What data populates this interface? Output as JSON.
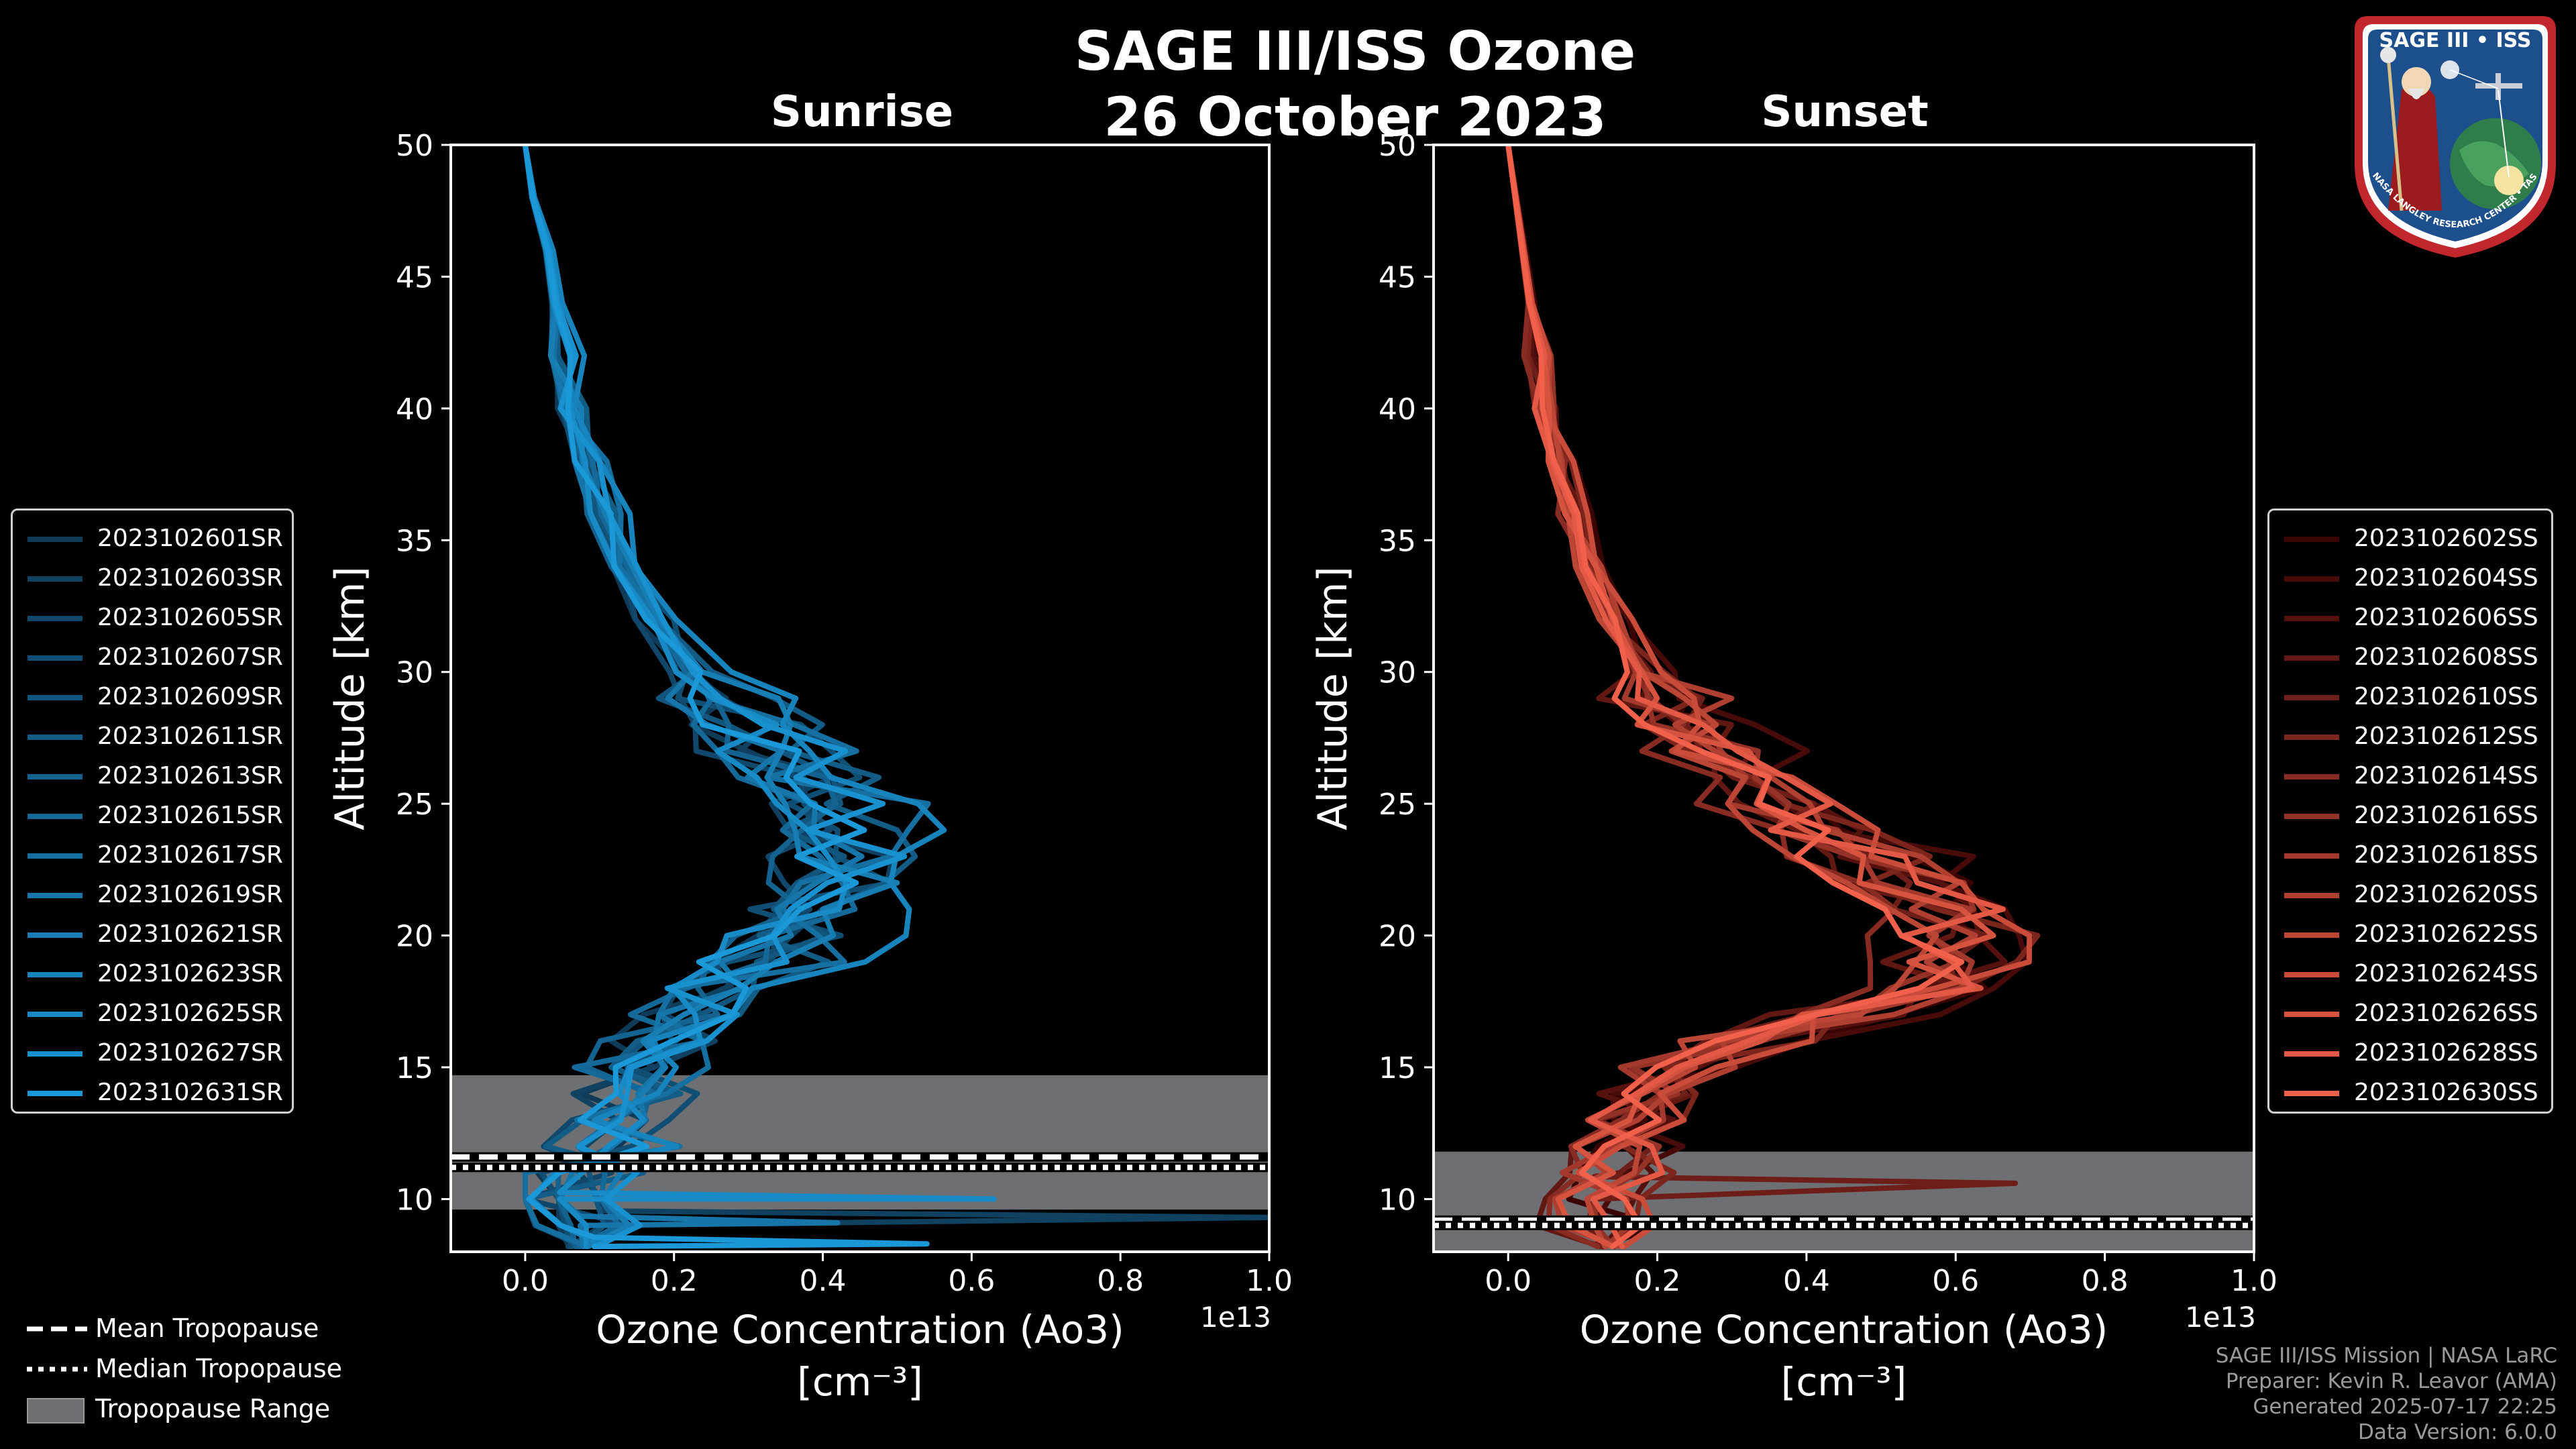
{
  "title": {
    "line1": "SAGE III/ISS Ozone",
    "line2": "26 October 2023"
  },
  "logo": {
    "text": "SAGE III • ISS",
    "ring_text": "BALL • NASA LANGLEY RESEARCH CENTER • TAS-I • ESA"
  },
  "legend_tropopause": [
    {
      "label": "Mean Tropopause",
      "style": "dashed"
    },
    {
      "label": "Median Tropopause",
      "style": "dotted"
    },
    {
      "label": "Tropopause Range",
      "style": "patch"
    }
  ],
  "credits": [
    "SAGE III/ISS Mission | NASA LaRC",
    "Preparer: Kevin R. Leavor (AMA)",
    "Generated 2025-07-17 22:25",
    "Data Version: 6.0.0"
  ],
  "colors": {
    "sunrise_light": "#1a98d8",
    "sunrise_dark": "#0f3a58",
    "sunset_light": "#f0604a",
    "sunset_dark": "#3a0404",
    "trop_fill": "#6e6f72",
    "frame": "#ffffff"
  },
  "chart_data": [
    {
      "type": "line",
      "title": "Sunrise",
      "xlabel": "Ozone Concentration (Ao3)",
      "xlabel_units": "[cm⁻³]",
      "ylabel": "Altitude [km]",
      "x_offset_label": "1e13",
      "xlim": [
        -0.1,
        1.0
      ],
      "ylim": [
        8,
        50
      ],
      "xticks": [
        0.0,
        0.2,
        0.4,
        0.6,
        0.8,
        1.0
      ],
      "xtick_labels": [
        "0.0",
        "0.2",
        "0.4",
        "0.6",
        "0.8",
        "1.0"
      ],
      "yticks": [
        10,
        15,
        20,
        25,
        30,
        35,
        40,
        45,
        50
      ],
      "ytick_labels": [
        "10",
        "15",
        "20",
        "25",
        "30",
        "35",
        "40",
        "45",
        "50"
      ],
      "tropopause": {
        "mean": 11.6,
        "median": 11.2,
        "range": [
          9.6,
          14.7
        ]
      },
      "profile_altitudes": [
        8.2,
        9,
        10,
        11,
        12,
        13,
        14,
        15,
        16,
        17,
        18,
        19,
        20,
        21,
        22,
        23,
        24,
        25,
        26,
        27,
        28,
        29,
        30,
        32,
        34,
        36,
        38,
        40,
        42,
        44,
        46,
        48,
        50
      ],
      "base_profile": [
        0.1,
        0.08,
        0.07,
        0.08,
        0.1,
        0.12,
        0.14,
        0.15,
        0.18,
        0.21,
        0.25,
        0.3,
        0.35,
        0.38,
        0.4,
        0.42,
        0.42,
        0.4,
        0.37,
        0.33,
        0.29,
        0.25,
        0.22,
        0.17,
        0.13,
        0.1,
        0.08,
        0.06,
        0.05,
        0.04,
        0.03,
        0.01,
        0.0
      ],
      "series": [
        {
          "name": "2023102601SR",
          "scale": 0.95,
          "jitter": 0.05,
          "spike": null
        },
        {
          "name": "2023102603SR",
          "scale": 1.02,
          "jitter": 0.06,
          "spike": {
            "alt": 9.3,
            "x": 1.0
          }
        },
        {
          "name": "2023102605SR",
          "scale": 0.9,
          "jitter": 0.05,
          "spike": null
        },
        {
          "name": "2023102607SR",
          "scale": 1.05,
          "jitter": 0.07,
          "spike": null
        },
        {
          "name": "2023102609SR",
          "scale": 0.98,
          "jitter": 0.05,
          "spike": null
        },
        {
          "name": "2023102611SR",
          "scale": 1.1,
          "jitter": 0.06,
          "spike": null
        },
        {
          "name": "2023102613SR",
          "scale": 0.92,
          "jitter": 0.05,
          "spike": null
        },
        {
          "name": "2023102615SR",
          "scale": 1.0,
          "jitter": 0.06,
          "spike": null
        },
        {
          "name": "2023102617SR",
          "scale": 1.12,
          "jitter": 0.07,
          "spike": null
        },
        {
          "name": "2023102619SR",
          "scale": 0.96,
          "jitter": 0.05,
          "spike": {
            "alt": 9.1,
            "x": 0.42
          }
        },
        {
          "name": "2023102621SR",
          "scale": 1.04,
          "jitter": 0.06,
          "spike": null
        },
        {
          "name": "2023102623SR",
          "scale": 1.25,
          "jitter": 0.06,
          "spike": null
        },
        {
          "name": "2023102625SR",
          "scale": 0.94,
          "jitter": 0.05,
          "spike": {
            "alt": 10.0,
            "x": 0.63
          }
        },
        {
          "name": "2023102627SR",
          "scale": 1.08,
          "jitter": 0.06,
          "spike": null
        },
        {
          "name": "2023102631SR",
          "scale": 1.01,
          "jitter": 0.05,
          "spike": {
            "alt": 8.3,
            "x": 0.54
          }
        }
      ]
    },
    {
      "type": "line",
      "title": "Sunset",
      "xlabel": "Ozone Concentration (Ao3)",
      "xlabel_units": "[cm⁻³]",
      "ylabel": "Altitude [km]",
      "x_offset_label": "1e13",
      "xlim": [
        -0.1,
        1.0
      ],
      "ylim": [
        8,
        50
      ],
      "xticks": [
        0.0,
        0.2,
        0.4,
        0.6,
        0.8,
        1.0
      ],
      "xtick_labels": [
        "0.0",
        "0.2",
        "0.4",
        "0.6",
        "0.8",
        "1.0"
      ],
      "yticks": [
        10,
        15,
        20,
        25,
        30,
        35,
        40,
        45,
        50
      ],
      "ytick_labels": [
        "10",
        "15",
        "20",
        "25",
        "30",
        "35",
        "40",
        "45",
        "50"
      ],
      "tropopause": {
        "mean": 9.2,
        "median": 9.0,
        "range": [
          8.0,
          11.8
        ]
      },
      "profile_altitudes": [
        8.2,
        9,
        10,
        11,
        12,
        13,
        14,
        15,
        16,
        17,
        18,
        19,
        20,
        21,
        22,
        23,
        24,
        25,
        26,
        27,
        28,
        29,
        30,
        32,
        34,
        36,
        38,
        40,
        42,
        44,
        46,
        48,
        50
      ],
      "base_profile": [
        0.1,
        0.12,
        0.13,
        0.14,
        0.15,
        0.16,
        0.18,
        0.22,
        0.32,
        0.45,
        0.58,
        0.6,
        0.6,
        0.58,
        0.52,
        0.46,
        0.4,
        0.35,
        0.31,
        0.27,
        0.24,
        0.21,
        0.18,
        0.14,
        0.11,
        0.09,
        0.07,
        0.05,
        0.04,
        0.03,
        0.02,
        0.01,
        0.0
      ],
      "series": [
        {
          "name": "2023102602SS",
          "scale": 1.1,
          "jitter": 0.05,
          "spike": null
        },
        {
          "name": "2023102604SS",
          "scale": 1.18,
          "jitter": 0.06,
          "spike": null
        },
        {
          "name": "2023102606SS",
          "scale": 1.05,
          "jitter": 0.05,
          "spike": null
        },
        {
          "name": "2023102608SS",
          "scale": 0.95,
          "jitter": 0.06,
          "spike": null
        },
        {
          "name": "2023102610SS",
          "scale": 1.0,
          "jitter": 0.05,
          "spike": {
            "alt": 10.6,
            "x": 0.68
          }
        },
        {
          "name": "2023102612SS",
          "scale": 1.06,
          "jitter": 0.06,
          "spike": null
        },
        {
          "name": "2023102614SS",
          "scale": 0.9,
          "jitter": 0.05,
          "spike": null
        },
        {
          "name": "2023102616SS",
          "scale": 1.02,
          "jitter": 0.06,
          "spike": null
        },
        {
          "name": "2023102618SS",
          "scale": 0.97,
          "jitter": 0.05,
          "spike": null
        },
        {
          "name": "2023102620SS",
          "scale": 1.04,
          "jitter": 0.06,
          "spike": null
        },
        {
          "name": "2023102622SS",
          "scale": 0.92,
          "jitter": 0.05,
          "spike": null
        },
        {
          "name": "2023102624SS",
          "scale": 1.08,
          "jitter": 0.06,
          "spike": null
        },
        {
          "name": "2023102626SS",
          "scale": 0.98,
          "jitter": 0.05,
          "spike": null
        },
        {
          "name": "2023102628SS",
          "scale": 1.0,
          "jitter": 0.06,
          "spike": null
        },
        {
          "name": "2023102630SS",
          "scale": 0.94,
          "jitter": 0.05,
          "spike": null
        }
      ]
    }
  ]
}
